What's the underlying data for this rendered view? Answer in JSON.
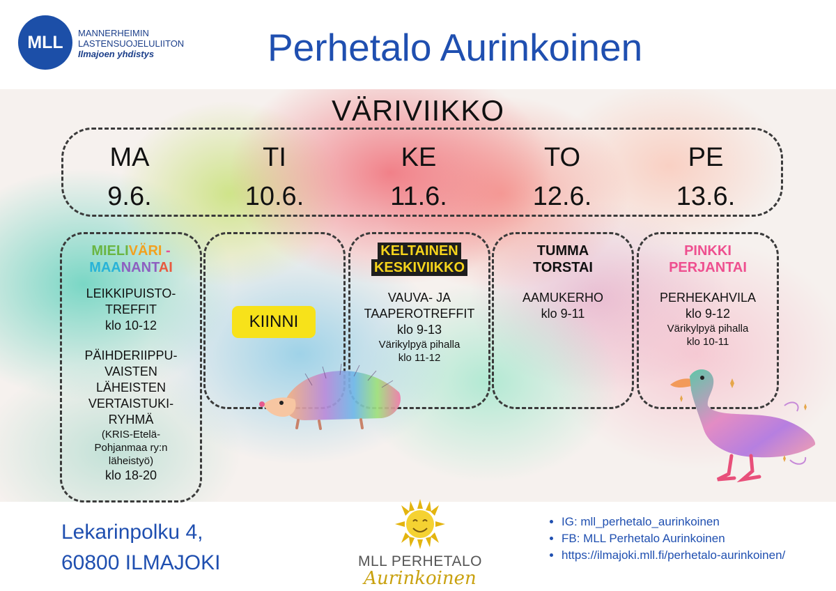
{
  "header": {
    "logo_abbr": "MLL",
    "logo_line1": "MANNERHEIMIN",
    "logo_line2": "LASTENSUOJELULIITON",
    "logo_line3": "Ilmajoen yhdistys",
    "title": "Perhetalo Aurinkoinen"
  },
  "week": {
    "title": "VÄRIVIIKKO",
    "days": [
      {
        "name": "MA",
        "date": "9.6."
      },
      {
        "name": "TI",
        "date": "10.6."
      },
      {
        "name": "KE",
        "date": "11.6."
      },
      {
        "name": "TO",
        "date": "12.6."
      },
      {
        "name": "PE",
        "date": "13.6."
      }
    ]
  },
  "columns": {
    "monday": {
      "title_parts": [
        "MIELI",
        "VÄRI",
        " -",
        "MAA",
        "NANT",
        "AI"
      ],
      "item1": [
        "LEIKKIPUISTO-",
        "TREFFIT",
        "klo 10-12"
      ],
      "item2": [
        "PÄIHDERIIPPU-",
        "VAISTEN",
        "LÄHEISTEN",
        "VERTAISTUKI-",
        "RYHMÄ"
      ],
      "item2_note": [
        "(KRIS-Etelä-",
        "Pohjanmaa ry:n",
        "läheistyö)"
      ],
      "item2_time": "klo 18-20"
    },
    "tuesday": {
      "closed": "KIINNI"
    },
    "wednesday": {
      "title": [
        "KELTAINEN",
        "KESKIVIIKKO"
      ],
      "lines": [
        "VAUVA- JA",
        "TAAPEROTREFFIT",
        "klo 9-13"
      ],
      "note": [
        "Värikylpyä pihalla",
        "klo 11-12"
      ]
    },
    "thursday": {
      "title": [
        "TUMMA",
        "TORSTAI"
      ],
      "lines": [
        "AAMUKERHO",
        "klo 9-11"
      ]
    },
    "friday": {
      "title": [
        "PINKKI",
        "PERJANTAI"
      ],
      "lines": [
        "PERHEKAHVILA",
        "klo 9-12"
      ],
      "note": [
        "Värikylpyä pihalla",
        "klo 10-11"
      ]
    }
  },
  "footer": {
    "address_line1": "Lekarinpolku 4,",
    "address_line2": "60800 ILMAJOKI",
    "logo_line1": "MLL PERHETALO",
    "logo_line2": "Aurinkoinen",
    "links": [
      "IG: mll_perhetalo_aurinkoinen",
      "FB: MLL Perhetalo Aurinkoinen",
      "https://ilmajoki.mll.fi/perhetalo-aurinkoinen/"
    ]
  },
  "colors": {
    "brand_blue": "#1f4fb0",
    "logo_blue": "#1c4fa8",
    "closed_yellow": "#f7e21a",
    "pink": "#ee4f8f",
    "gold": "#c9a10e"
  }
}
